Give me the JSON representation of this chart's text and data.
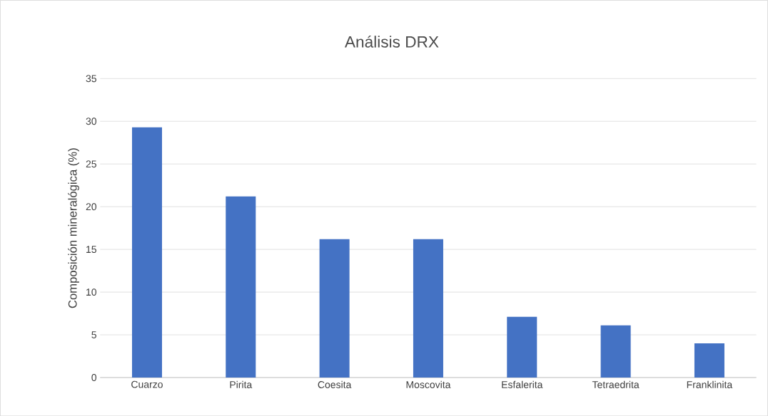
{
  "chart_data": {
    "type": "bar",
    "title": "Análisis DRX",
    "ylabel": "Composición mineralógica (%)",
    "categories": [
      "Cuarzo",
      "Pirita",
      "Coesita",
      "Moscovita",
      "Esfalerita",
      "Tetraedrita",
      "Franklinita"
    ],
    "values": [
      29.3,
      21.2,
      16.2,
      16.2,
      7.1,
      6.1,
      4.0
    ],
    "color": "#4472c4",
    "ylim": [
      0,
      35
    ],
    "yticks": [
      0,
      5,
      10,
      15,
      20,
      25,
      30,
      35
    ],
    "grid": "y"
  }
}
